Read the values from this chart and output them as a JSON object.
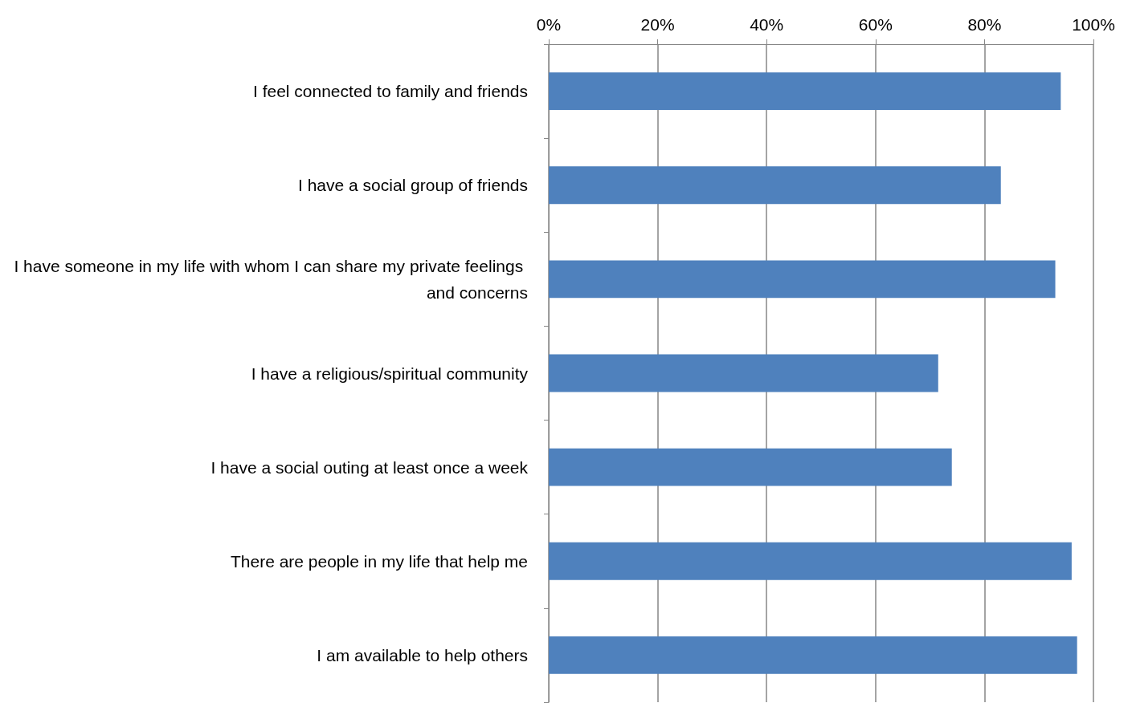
{
  "chart_data": {
    "type": "bar",
    "orientation": "horizontal",
    "categories": [
      "I feel connected to family and friends",
      "I have a social group of friends",
      "I have someone in my life with whom I can share my private feelings and concerns",
      "I have a religious/spiritual community",
      "I have a social outing at least once a week",
      "There are people in my life that help me",
      "I am available to help others"
    ],
    "values": [
      94,
      83,
      93,
      71.5,
      74,
      96,
      97
    ],
    "color": "#4f81bd",
    "xlim": [
      0,
      100
    ],
    "xticks": [
      {
        "value": 0,
        "label": "0%"
      },
      {
        "value": 20,
        "label": "20%"
      },
      {
        "value": 40,
        "label": "40%"
      },
      {
        "value": 60,
        "label": "60%"
      },
      {
        "value": 80,
        "label": "80%"
      },
      {
        "value": 100,
        "label": "100%"
      }
    ],
    "grid": "x"
  }
}
